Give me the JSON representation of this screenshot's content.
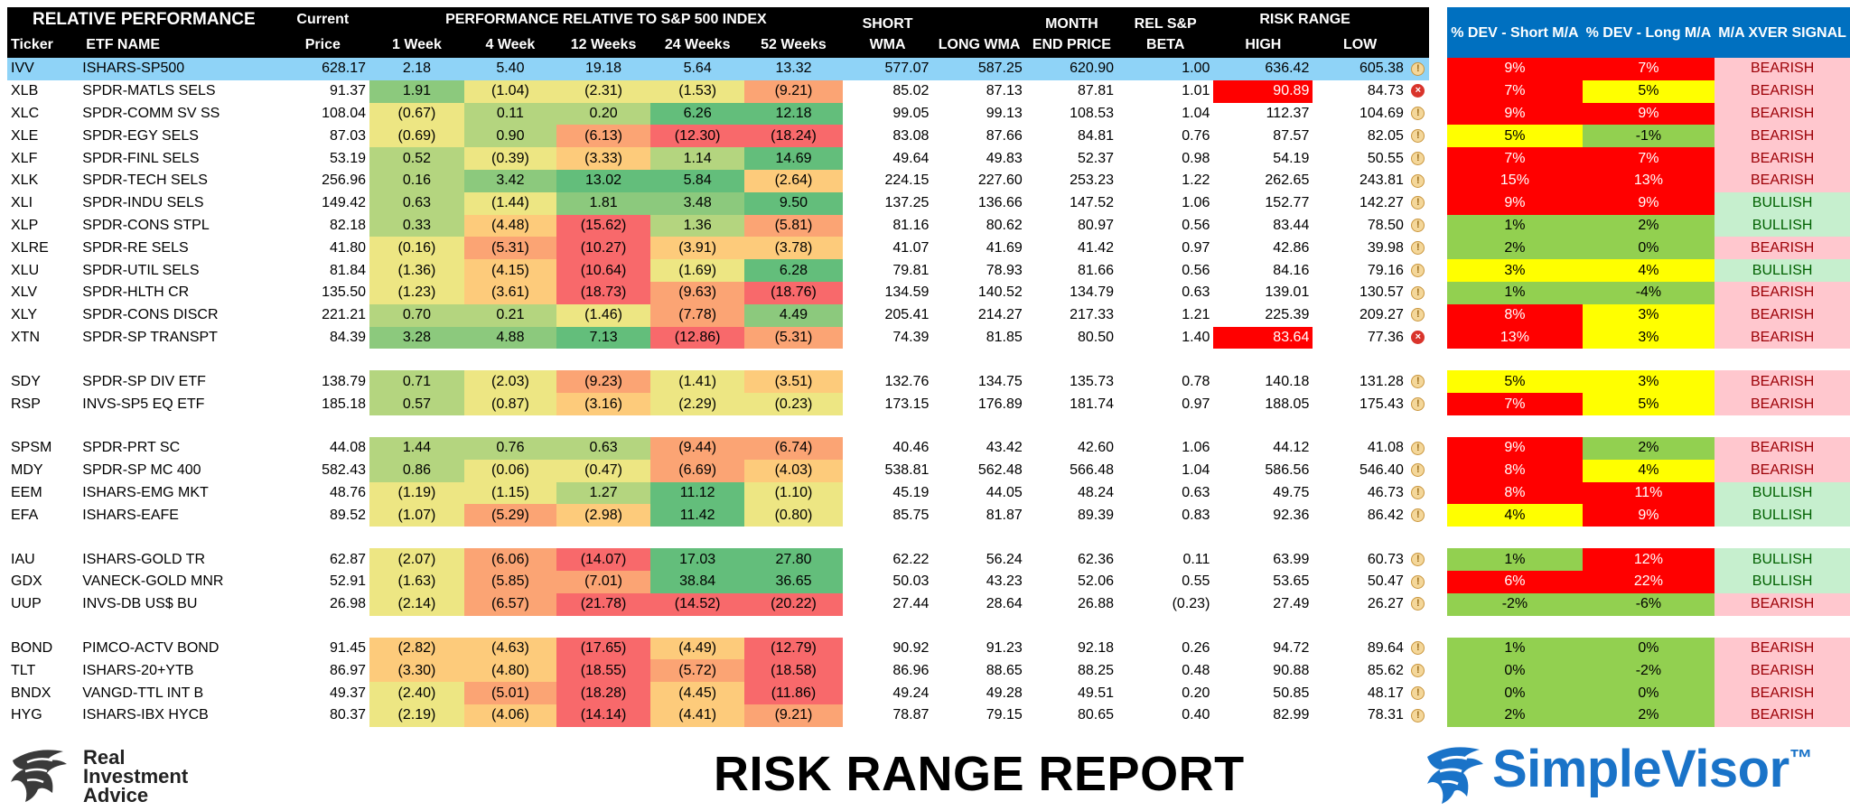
{
  "header": {
    "title": "RELATIVE PERFORMANCE",
    "current": "Current",
    "perf_title": "PERFORMANCE RELATIVE TO S&P 500 INDEX",
    "short_wma_1": "SHORT",
    "short_wma_2": "WMA",
    "long_wma": "LONG WMA",
    "month_end_1": "MONTH",
    "month_end_2": "END PRICE",
    "rel_beta_1": "REL S&P",
    "rel_beta_2": "BETA",
    "risk_range": "RISK RANGE",
    "dev_short": "% DEV - Short M/A",
    "dev_long": "% DEV - Long M/A",
    "xver": "M/A XVER SIGNAL",
    "ticker": "Ticker",
    "etf_name": "ETF NAME",
    "price": "Price",
    "w1": "1 Week",
    "w4": "4 Week",
    "w12": "12 Weeks",
    "w24": "24 Weeks",
    "w52": "52 Weeks",
    "high": "HIGH",
    "low": "LOW"
  },
  "rows": [
    {
      "ticker": "IVV",
      "name": "ISHARS-SP500",
      "price": "628.17",
      "w1": "2.18",
      "w4": "5.40",
      "w12": "19.18",
      "w24": "5.64",
      "w52": "13.32",
      "swma": "577.07",
      "lwma": "587.25",
      "mep": "620.90",
      "beta": "1.00",
      "high": "636.42",
      "low": "605.38",
      "icon": "warn",
      "ds": "9%",
      "dl": "7%",
      "sig": "BEARISH"
    },
    {
      "ticker": "XLB",
      "name": "SPDR-MATLS SELS",
      "price": "91.37",
      "w1": "1.91",
      "w4": "(1.04)",
      "w12": "(2.31)",
      "w24": "(1.53)",
      "w52": "(9.21)",
      "swma": "85.02",
      "lwma": "87.13",
      "mep": "87.81",
      "beta": "1.01",
      "high": "90.89",
      "low": "84.73",
      "icon": "err",
      "ds": "7%",
      "dl": "5%",
      "sig": "BEARISH"
    },
    {
      "ticker": "XLC",
      "name": "SPDR-COMM SV SS",
      "price": "108.04",
      "w1": "(0.67)",
      "w4": "0.11",
      "w12": "0.20",
      "w24": "6.26",
      "w52": "12.18",
      "swma": "99.05",
      "lwma": "99.13",
      "mep": "108.53",
      "beta": "1.04",
      "high": "112.37",
      "low": "104.69",
      "icon": "warn",
      "ds": "9%",
      "dl": "9%",
      "sig": "BEARISH"
    },
    {
      "ticker": "XLE",
      "name": "SPDR-EGY SELS",
      "price": "87.03",
      "w1": "(0.69)",
      "w4": "0.90",
      "w12": "(6.13)",
      "w24": "(12.30)",
      "w52": "(18.24)",
      "swma": "83.08",
      "lwma": "87.66",
      "mep": "84.81",
      "beta": "0.76",
      "high": "87.57",
      "low": "82.05",
      "icon": "warn",
      "ds": "5%",
      "dl": "-1%",
      "sig": "BEARISH"
    },
    {
      "ticker": "XLF",
      "name": "SPDR-FINL SELS",
      "price": "53.19",
      "w1": "0.52",
      "w4": "(0.39)",
      "w12": "(3.33)",
      "w24": "1.14",
      "w52": "14.69",
      "swma": "49.64",
      "lwma": "49.83",
      "mep": "52.37",
      "beta": "0.98",
      "high": "54.19",
      "low": "50.55",
      "icon": "warn",
      "ds": "7%",
      "dl": "7%",
      "sig": "BEARISH"
    },
    {
      "ticker": "XLK",
      "name": "SPDR-TECH SELS",
      "price": "256.96",
      "w1": "0.16",
      "w4": "3.42",
      "w12": "13.02",
      "w24": "5.84",
      "w52": "(2.64)",
      "swma": "224.15",
      "lwma": "227.60",
      "mep": "253.23",
      "beta": "1.22",
      "high": "262.65",
      "low": "243.81",
      "icon": "warn",
      "ds": "15%",
      "dl": "13%",
      "sig": "BEARISH"
    },
    {
      "ticker": "XLI",
      "name": "SPDR-INDU SELS",
      "price": "149.42",
      "w1": "0.63",
      "w4": "(1.44)",
      "w12": "1.81",
      "w24": "3.48",
      "w52": "9.50",
      "swma": "137.25",
      "lwma": "136.66",
      "mep": "147.52",
      "beta": "1.06",
      "high": "152.77",
      "low": "142.27",
      "icon": "warn",
      "ds": "9%",
      "dl": "9%",
      "sig": "BULLISH"
    },
    {
      "ticker": "XLP",
      "name": "SPDR-CONS STPL",
      "price": "82.18",
      "w1": "0.33",
      "w4": "(4.48)",
      "w12": "(15.62)",
      "w24": "1.36",
      "w52": "(5.81)",
      "swma": "81.16",
      "lwma": "80.62",
      "mep": "80.97",
      "beta": "0.56",
      "high": "83.44",
      "low": "78.50",
      "icon": "warn",
      "ds": "1%",
      "dl": "2%",
      "sig": "BULLISH"
    },
    {
      "ticker": "XLRE",
      "name": "SPDR-RE SELS",
      "price": "41.80",
      "w1": "(0.16)",
      "w4": "(5.31)",
      "w12": "(10.27)",
      "w24": "(3.91)",
      "w52": "(3.78)",
      "swma": "41.07",
      "lwma": "41.69",
      "mep": "41.42",
      "beta": "0.97",
      "high": "42.86",
      "low": "39.98",
      "icon": "warn",
      "ds": "2%",
      "dl": "0%",
      "sig": "BEARISH"
    },
    {
      "ticker": "XLU",
      "name": "SPDR-UTIL SELS",
      "price": "81.84",
      "w1": "(1.36)",
      "w4": "(4.15)",
      "w12": "(10.64)",
      "w24": "(1.69)",
      "w52": "6.28",
      "swma": "79.81",
      "lwma": "78.93",
      "mep": "81.66",
      "beta": "0.56",
      "high": "84.16",
      "low": "79.16",
      "icon": "warn",
      "ds": "3%",
      "dl": "4%",
      "sig": "BULLISH"
    },
    {
      "ticker": "XLV",
      "name": "SPDR-HLTH CR",
      "price": "135.50",
      "w1": "(1.23)",
      "w4": "(3.61)",
      "w12": "(18.73)",
      "w24": "(9.63)",
      "w52": "(18.76)",
      "swma": "134.59",
      "lwma": "140.52",
      "mep": "134.79",
      "beta": "0.63",
      "high": "139.01",
      "low": "130.57",
      "icon": "warn",
      "ds": "1%",
      "dl": "-4%",
      "sig": "BEARISH"
    },
    {
      "ticker": "XLY",
      "name": "SPDR-CONS DISCR",
      "price": "221.21",
      "w1": "0.70",
      "w4": "0.21",
      "w12": "(1.46)",
      "w24": "(7.78)",
      "w52": "4.49",
      "swma": "205.41",
      "lwma": "214.27",
      "mep": "217.33",
      "beta": "1.21",
      "high": "225.39",
      "low": "209.27",
      "icon": "warn",
      "ds": "8%",
      "dl": "3%",
      "sig": "BEARISH"
    },
    {
      "ticker": "XTN",
      "name": "SPDR-SP TRANSPT",
      "price": "84.39",
      "w1": "3.28",
      "w4": "4.88",
      "w12": "7.13",
      "w24": "(12.86)",
      "w52": "(5.31)",
      "swma": "74.39",
      "lwma": "81.85",
      "mep": "80.50",
      "beta": "1.40",
      "high": "83.64",
      "low": "77.36",
      "icon": "err",
      "ds": "13%",
      "dl": "3%",
      "sig": "BEARISH"
    },
    {
      "ticker": "SDY",
      "name": "SPDR-SP DIV ETF",
      "price": "138.79",
      "w1": "0.71",
      "w4": "(2.03)",
      "w12": "(9.23)",
      "w24": "(1.41)",
      "w52": "(3.51)",
      "swma": "132.76",
      "lwma": "134.75",
      "mep": "135.73",
      "beta": "0.78",
      "high": "140.18",
      "low": "131.28",
      "icon": "warn",
      "ds": "5%",
      "dl": "3%",
      "sig": "BEARISH"
    },
    {
      "ticker": "RSP",
      "name": "INVS-SP5 EQ ETF",
      "price": "185.18",
      "w1": "0.57",
      "w4": "(0.87)",
      "w12": "(3.16)",
      "w24": "(2.29)",
      "w52": "(0.23)",
      "swma": "173.15",
      "lwma": "176.89",
      "mep": "181.74",
      "beta": "0.97",
      "high": "188.05",
      "low": "175.43",
      "icon": "warn",
      "ds": "7%",
      "dl": "5%",
      "sig": "BEARISH"
    },
    {
      "ticker": "SPSM",
      "name": "SPDR-PRT SC",
      "price": "44.08",
      "w1": "1.44",
      "w4": "0.76",
      "w12": "0.63",
      "w24": "(9.44)",
      "w52": "(6.74)",
      "swma": "40.46",
      "lwma": "43.42",
      "mep": "42.60",
      "beta": "1.06",
      "high": "44.12",
      "low": "41.08",
      "icon": "warn",
      "ds": "9%",
      "dl": "2%",
      "sig": "BEARISH"
    },
    {
      "ticker": "MDY",
      "name": "SPDR-SP MC 400",
      "price": "582.43",
      "w1": "0.86",
      "w4": "(0.06)",
      "w12": "(0.47)",
      "w24": "(6.69)",
      "w52": "(4.03)",
      "swma": "538.81",
      "lwma": "562.48",
      "mep": "566.48",
      "beta": "1.04",
      "high": "586.56",
      "low": "546.40",
      "icon": "warn",
      "ds": "8%",
      "dl": "4%",
      "sig": "BEARISH"
    },
    {
      "ticker": "EEM",
      "name": "ISHARS-EMG MKT",
      "price": "48.76",
      "w1": "(1.19)",
      "w4": "(1.15)",
      "w12": "1.27",
      "w24": "11.12",
      "w52": "(1.10)",
      "swma": "45.19",
      "lwma": "44.05",
      "mep": "48.24",
      "beta": "0.63",
      "high": "49.75",
      "low": "46.73",
      "icon": "warn",
      "ds": "8%",
      "dl": "11%",
      "sig": "BULLISH"
    },
    {
      "ticker": "EFA",
      "name": "ISHARS-EAFE",
      "price": "89.52",
      "w1": "(1.07)",
      "w4": "(5.29)",
      "w12": "(2.98)",
      "w24": "11.42",
      "w52": "(0.80)",
      "swma": "85.75",
      "lwma": "81.87",
      "mep": "89.39",
      "beta": "0.83",
      "high": "92.36",
      "low": "86.42",
      "icon": "warn",
      "ds": "4%",
      "dl": "9%",
      "sig": "BULLISH"
    },
    {
      "ticker": "IAU",
      "name": "ISHARS-GOLD TR",
      "price": "62.87",
      "w1": "(2.07)",
      "w4": "(6.06)",
      "w12": "(14.07)",
      "w24": "17.03",
      "w52": "27.80",
      "swma": "62.22",
      "lwma": "56.24",
      "mep": "62.36",
      "beta": "0.11",
      "high": "63.99",
      "low": "60.73",
      "icon": "warn",
      "ds": "1%",
      "dl": "12%",
      "sig": "BULLISH"
    },
    {
      "ticker": "GDX",
      "name": "VANECK-GOLD MNR",
      "price": "52.91",
      "w1": "(1.63)",
      "w4": "(5.85)",
      "w12": "(7.01)",
      "w24": "38.84",
      "w52": "36.65",
      "swma": "50.03",
      "lwma": "43.23",
      "mep": "52.06",
      "beta": "0.55",
      "high": "53.65",
      "low": "50.47",
      "icon": "warn",
      "ds": "6%",
      "dl": "22%",
      "sig": "BULLISH"
    },
    {
      "ticker": "UUP",
      "name": "INVS-DB US$ BU",
      "price": "26.98",
      "w1": "(2.14)",
      "w4": "(6.57)",
      "w12": "(21.78)",
      "w24": "(14.52)",
      "w52": "(20.22)",
      "swma": "27.44",
      "lwma": "28.64",
      "mep": "26.88",
      "beta": "(0.23)",
      "high": "27.49",
      "low": "26.27",
      "icon": "warn",
      "ds": "-2%",
      "dl": "-6%",
      "sig": "BEARISH"
    },
    {
      "ticker": "BOND",
      "name": "PIMCO-ACTV BOND",
      "price": "91.45",
      "w1": "(2.82)",
      "w4": "(4.63)",
      "w12": "(17.65)",
      "w24": "(4.49)",
      "w52": "(12.79)",
      "swma": "90.92",
      "lwma": "91.23",
      "mep": "92.18",
      "beta": "0.26",
      "high": "94.72",
      "low": "89.64",
      "icon": "warn",
      "ds": "1%",
      "dl": "0%",
      "sig": "BEARISH"
    },
    {
      "ticker": "TLT",
      "name": "ISHARS-20+YTB",
      "price": "86.97",
      "w1": "(3.30)",
      "w4": "(4.80)",
      "w12": "(18.55)",
      "w24": "(5.72)",
      "w52": "(18.58)",
      "swma": "86.96",
      "lwma": "88.65",
      "mep": "88.25",
      "beta": "0.48",
      "high": "90.88",
      "low": "85.62",
      "icon": "warn",
      "ds": "0%",
      "dl": "-2%",
      "sig": "BEARISH"
    },
    {
      "ticker": "BNDX",
      "name": "VANGD-TTL INT B",
      "price": "49.37",
      "w1": "(2.40)",
      "w4": "(5.01)",
      "w12": "(18.28)",
      "w24": "(4.45)",
      "w52": "(11.86)",
      "swma": "49.24",
      "lwma": "49.28",
      "mep": "49.51",
      "beta": "0.20",
      "high": "50.85",
      "low": "48.17",
      "icon": "warn",
      "ds": "0%",
      "dl": "0%",
      "sig": "BEARISH"
    },
    {
      "ticker": "HYG",
      "name": "ISHARS-IBX HYCB",
      "price": "80.37",
      "w1": "(2.19)",
      "w4": "(4.06)",
      "w12": "(14.14)",
      "w24": "(4.41)",
      "w52": "(9.21)",
      "swma": "78.87",
      "lwma": "79.15",
      "mep": "80.65",
      "beta": "0.40",
      "high": "82.99",
      "low": "78.31",
      "icon": "warn",
      "ds": "2%",
      "dl": "2%",
      "sig": "BEARISH"
    }
  ],
  "groups_after": [
    12,
    14,
    18,
    21
  ],
  "footer": {
    "report_title": "RISK RANGE REPORT",
    "ria_line1": "Real",
    "ria_line2": "Investment",
    "ria_line3": "Advice",
    "simplevisor": "SimpleVisor",
    "tm": "™"
  },
  "colors": {
    "header_bg": "#000000",
    "dev_header_bg": "#0070c0",
    "highlight_row": "#8fd3f7",
    "bearish_bg": "#ffc7ce",
    "bearish_text": "#9c0006",
    "bullish_bg": "#c6efce",
    "bullish_text": "#006100",
    "brand_blue": "#1a73c8"
  }
}
